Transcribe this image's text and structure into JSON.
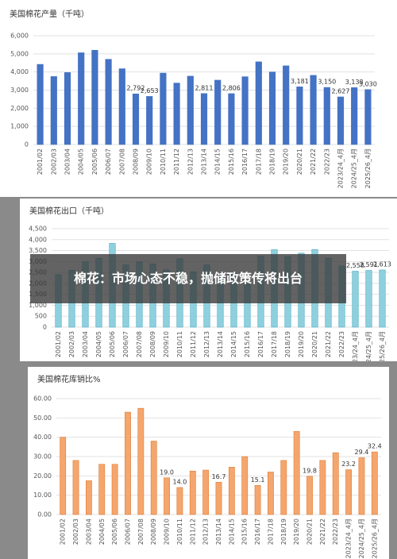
{
  "headline": "棉花：市场心态不稳，抛储政策传将出台",
  "chart_data": [
    {
      "type": "bar",
      "title": "美国棉花产量（千吨）",
      "color": "#4472c4",
      "edge": "#4472c4",
      "categories": [
        "2001/02",
        "2002/03",
        "2003/04",
        "2004/05",
        "2005/06",
        "2006/07",
        "2007/08",
        "2008/09",
        "2009/10",
        "2010/11",
        "2011/12",
        "2012/13",
        "2013/14",
        "2014/15",
        "2015/16",
        "2016/17",
        "2017/18",
        "2018/19",
        "2019/20",
        "2020/21",
        "2021/22",
        "2022/23",
        "2023/24_4月",
        "2024/25_4月",
        "2025/26_4月"
      ],
      "values": [
        4420,
        3750,
        3970,
        5060,
        5200,
        4700,
        4180,
        2792,
        2653,
        3940,
        3390,
        3770,
        2811,
        3550,
        2806,
        3740,
        4560,
        4000,
        4340,
        3181,
        3815,
        3150,
        2627,
        3138,
        3030
      ],
      "value_labels": [
        null,
        null,
        null,
        null,
        null,
        null,
        null,
        "2,792",
        "2,653",
        null,
        null,
        null,
        "2,811",
        null,
        "2,806",
        null,
        null,
        null,
        null,
        "3,181",
        null,
        "3,150",
        "2,627",
        "3,138",
        "3,030"
      ],
      "ylim": [
        0,
        6000
      ],
      "yticks": [
        0,
        {
          "value": 1000,
          "label": "1,000"
        },
        {
          "value": 2000,
          "label": "2,000"
        },
        {
          "value": 3000,
          "label": "3,000"
        },
        {
          "value": 4000,
          "label": "4,000"
        },
        {
          "value": 5000,
          "label": "5,000"
        },
        {
          "value": 6000,
          "label": "6,000"
        }
      ],
      "grid": true
    },
    {
      "type": "bar",
      "title": "美国棉花出口（千吨）",
      "color": "#8fd0df",
      "edge": "#4aa9c3",
      "categories": [
        "2001/02",
        "2002/03",
        "2003/04",
        "2004/05",
        "2005/06",
        "2006/07",
        "2007/08",
        "2008/09",
        "2009/10",
        "2010/11",
        "2011/12",
        "2012/13",
        "2013/14",
        "2014/15",
        "2015/16",
        "2016/17",
        "2017/18",
        "2018/19",
        "2019/20",
        "2020/21",
        "2021/22",
        "2022/23",
        "2023/24_4月",
        "2024/25_4月",
        "2025/26_4月"
      ],
      "values": [
        2400,
        2600,
        2990,
        3150,
        3830,
        2840,
        2980,
        2890,
        2620,
        3130,
        2530,
        2840,
        2290,
        2450,
        1990,
        3250,
        3540,
        3230,
        3380,
        3550,
        3150,
        2800,
        2558,
        2591,
        2613
      ],
      "value_labels": [
        null,
        null,
        null,
        null,
        null,
        null,
        null,
        null,
        null,
        null,
        null,
        null,
        null,
        null,
        null,
        null,
        null,
        null,
        null,
        null,
        null,
        null,
        "2,558",
        "2,591",
        "2,613"
      ],
      "ylim": [
        0,
        4500
      ],
      "yticks": [
        0,
        500,
        {
          "value": 1000,
          "label": "1,000"
        },
        {
          "value": 1500,
          "label": "1,500"
        },
        {
          "value": 2000,
          "label": "2,000"
        },
        {
          "value": 2500,
          "label": "2,500"
        },
        {
          "value": 3000,
          "label": "3,000"
        },
        {
          "value": 3500,
          "label": "3,500"
        },
        {
          "value": 4000,
          "label": "4,000"
        },
        {
          "value": 4500,
          "label": "4,500"
        }
      ],
      "grid": true
    },
    {
      "type": "bar",
      "title": "美国棉花库销比%",
      "color": "#f4a66e",
      "edge": "#e07b2f",
      "categories": [
        "2001/02",
        "2002/03",
        "2003/04",
        "2004/05",
        "2005/06",
        "2006/07",
        "2007/08",
        "2008/09",
        "2009/10",
        "2010/11",
        "2011/12",
        "2012/13",
        "2013/14",
        "2014/15",
        "2015/16",
        "2016/17",
        "2017/18",
        "2018/19",
        "2019/20",
        "2020/21",
        "2021/22",
        "2022/23",
        "2023/24_4月",
        "2024/25_4月",
        "2025/26_4月"
      ],
      "values": [
        40,
        28,
        17.5,
        26,
        26,
        53,
        55,
        38,
        19.0,
        14.0,
        22.5,
        23,
        16.7,
        24.5,
        30,
        15.1,
        22,
        28,
        43,
        19.8,
        28,
        32,
        23.2,
        29.4,
        32.4
      ],
      "value_labels": [
        null,
        null,
        null,
        null,
        null,
        null,
        null,
        null,
        "19.0",
        "14.0",
        null,
        null,
        "16.7",
        null,
        null,
        "15.1",
        null,
        null,
        null,
        "19.8",
        null,
        null,
        "23.2",
        "29.4",
        "32.4"
      ],
      "ylim": [
        0,
        60
      ],
      "yticks": [
        {
          "value": 0,
          "label": "0.00"
        },
        {
          "value": 10,
          "label": "10.00"
        },
        {
          "value": 20,
          "label": "20.00"
        },
        {
          "value": 30,
          "label": "30.00"
        },
        {
          "value": 40,
          "label": "40.00"
        },
        {
          "value": 50,
          "label": "50.00"
        },
        {
          "value": 60,
          "label": "60.00"
        }
      ],
      "grid": true
    }
  ]
}
